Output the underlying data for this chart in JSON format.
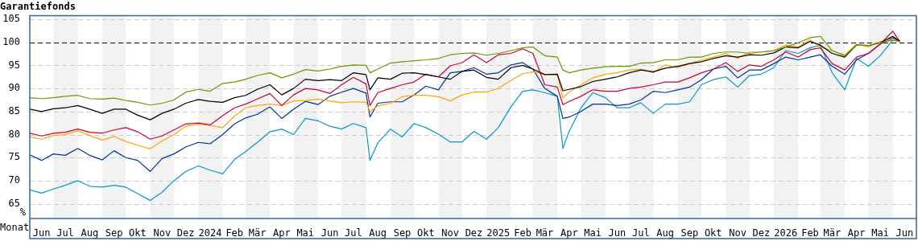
{
  "chart_data": {
    "type": "line",
    "title": "Garantiefonds",
    "xlabel": "Monat",
    "ylabel": "%",
    "x": [
      "2023-06-01",
      "2023-06-16",
      "2023-07-01",
      "2023-07-16",
      "2023-08-01",
      "2023-08-16",
      "2023-09-01",
      "2023-09-16",
      "2023-10-01",
      "2023-10-16",
      "2023-11-01",
      "2023-11-16",
      "2023-12-01",
      "2023-12-16",
      "2024-01-01",
      "2024-01-16",
      "2024-02-01",
      "2024-02-16",
      "2024-03-01",
      "2024-03-16",
      "2024-04-01",
      "2024-04-16",
      "2024-05-01",
      "2024-05-16",
      "2024-06-01",
      "2024-06-16",
      "2024-07-01",
      "2024-07-16",
      "2024-08-01",
      "2024-08-06",
      "2024-08-16",
      "2024-09-01",
      "2024-09-16",
      "2024-10-01",
      "2024-10-16",
      "2024-11-01",
      "2024-11-16",
      "2024-12-01",
      "2024-12-16",
      "2025-01-01",
      "2025-01-16",
      "2025-02-01",
      "2025-02-16",
      "2025-03-01",
      "2025-03-16",
      "2025-04-01",
      "2025-04-08",
      "2025-04-16",
      "2025-05-01",
      "2025-05-16",
      "2025-06-01",
      "2025-06-16",
      "2025-07-01",
      "2025-07-16",
      "2025-08-01",
      "2025-08-16",
      "2025-09-01",
      "2025-09-16",
      "2025-10-01",
      "2025-10-16",
      "2025-11-01",
      "2025-11-16",
      "2025-12-01",
      "2025-12-16",
      "2026-01-01",
      "2026-01-16",
      "2026-02-01",
      "2026-02-16",
      "2026-03-01",
      "2026-03-16",
      "2026-04-01",
      "2026-04-16",
      "2026-05-01",
      "2026-05-16",
      "2026-06-01",
      "2026-06-10"
    ],
    "series": [
      {
        "color": "#669900",
        "values": [
          88.0,
          87.8,
          88.0,
          88.3,
          88.5,
          87.8,
          87.7,
          87.9,
          87.4,
          87.0,
          86.4,
          86.8,
          87.5,
          89.2,
          89.8,
          89.4,
          91.1,
          91.4,
          92.0,
          92.8,
          93.4,
          92.3,
          93.1,
          94.1,
          93.8,
          94.2,
          94.8,
          95.1,
          95.0,
          93.4,
          94.2,
          95.5,
          95.8,
          96.0,
          96.2,
          96.5,
          97.3,
          97.6,
          97.7,
          97.2,
          97.6,
          98.2,
          98.8,
          99.0,
          97.1,
          96.8,
          94.0,
          93.4,
          94.0,
          94.4,
          94.7,
          94.8,
          94.8,
          95.5,
          95.6,
          96.2,
          96.2,
          96.8,
          96.8,
          97.6,
          97.9,
          97.9,
          97.6,
          97.9,
          98.2,
          99.0,
          99.9,
          101.0,
          101.3,
          98.2,
          97.1,
          99.4,
          99.3,
          99.9,
          100.5,
          100.2
        ]
      },
      {
        "color": "#000000",
        "values": [
          85.5,
          85.0,
          85.6,
          85.8,
          86.3,
          85.5,
          84.6,
          85.5,
          85.5,
          84.2,
          83.2,
          84.6,
          85.5,
          86.8,
          87.6,
          87.2,
          87.0,
          88.0,
          88.5,
          89.8,
          90.8,
          88.6,
          90.0,
          92.0,
          91.7,
          91.9,
          91.7,
          93.4,
          93.0,
          89.7,
          92.3,
          92.0,
          93.3,
          93.4,
          93.0,
          92.5,
          92.0,
          93.7,
          94.0,
          92.4,
          92.0,
          94.5,
          95.0,
          94.2,
          93.0,
          93.1,
          89.5,
          89.8,
          90.4,
          91.5,
          92.0,
          92.5,
          93.4,
          94.0,
          93.6,
          94.4,
          94.8,
          95.4,
          95.8,
          96.5,
          97.1,
          96.8,
          97.3,
          97.2,
          97.7,
          99.0,
          98.8,
          100.2,
          99.4,
          97.6,
          96.8,
          99.4,
          99.3,
          99.9,
          101.3,
          100.2
        ]
      },
      {
        "color": "#cc0033",
        "values": [
          80.3,
          79.7,
          80.3,
          80.5,
          81.2,
          80.5,
          80.3,
          81.0,
          81.5,
          80.6,
          79.0,
          79.7,
          81.0,
          82.3,
          82.5,
          82.1,
          84.1,
          85.8,
          86.6,
          87.7,
          88.9,
          86.3,
          88.6,
          90.0,
          89.7,
          88.9,
          90.8,
          92.4,
          91.0,
          86.3,
          89.1,
          90.0,
          90.8,
          91.4,
          93.1,
          92.5,
          94.9,
          95.6,
          97.3,
          95.6,
          97.3,
          97.6,
          98.6,
          97.6,
          90.8,
          90.3,
          86.5,
          87.2,
          88.3,
          89.7,
          89.4,
          89.4,
          90.0,
          90.3,
          90.8,
          91.4,
          91.4,
          92.3,
          93.4,
          94.2,
          95.6,
          93.7,
          95.1,
          94.8,
          96.2,
          97.9,
          96.8,
          98.4,
          98.8,
          95.4,
          94.0,
          96.8,
          97.6,
          99.6,
          102.4,
          100.2
        ]
      },
      {
        "color": "#ffa500",
        "values": [
          79.5,
          79.0,
          79.8,
          80.0,
          80.8,
          79.8,
          78.8,
          79.6,
          78.5,
          77.7,
          76.9,
          78.6,
          80.0,
          81.8,
          82.2,
          82.0,
          81.5,
          84.0,
          85.8,
          86.3,
          86.6,
          86.3,
          87.3,
          87.4,
          87.7,
          87.3,
          86.9,
          87.1,
          87.0,
          85.0,
          86.2,
          86.8,
          88.2,
          88.5,
          88.5,
          88.2,
          87.3,
          88.6,
          89.2,
          89.2,
          90.0,
          91.7,
          93.2,
          93.6,
          93.1,
          92.9,
          88.0,
          89.2,
          90.8,
          92.3,
          93.1,
          93.4,
          94.0,
          94.2,
          93.4,
          95.1,
          94.5,
          95.4,
          96.2,
          96.8,
          97.6,
          96.5,
          97.9,
          97.9,
          98.2,
          99.4,
          99.0,
          100.5,
          99.0,
          98.2,
          97.3,
          99.6,
          99.0,
          100.2,
          100.6,
          100.2
        ]
      },
      {
        "color": "#003399",
        "values": [
          75.6,
          74.4,
          75.8,
          75.5,
          77.0,
          75.5,
          74.5,
          76.5,
          75.0,
          74.4,
          72.0,
          74.8,
          75.8,
          77.3,
          78.3,
          78.0,
          80.0,
          82.3,
          83.6,
          84.4,
          86.0,
          83.5,
          85.5,
          87.2,
          86.5,
          88.3,
          89.2,
          90.0,
          89.0,
          83.8,
          86.8,
          87.1,
          87.1,
          88.6,
          90.5,
          89.7,
          93.4,
          93.7,
          94.5,
          93.1,
          93.4,
          95.1,
          95.6,
          94.2,
          90.0,
          88.3,
          83.5,
          83.8,
          85.0,
          86.6,
          86.6,
          86.3,
          86.6,
          87.5,
          89.4,
          89.1,
          89.7,
          90.3,
          91.9,
          94.2,
          94.8,
          92.3,
          94.0,
          94.0,
          95.4,
          96.8,
          96.2,
          96.8,
          97.3,
          94.8,
          93.1,
          96.2,
          97.6,
          99.6,
          101.0,
          100.2
        ]
      },
      {
        "color": "#0099cc",
        "values": [
          68.0,
          67.3,
          68.2,
          69.0,
          70.0,
          68.8,
          68.6,
          69.0,
          68.6,
          67.2,
          65.7,
          67.5,
          70.0,
          72.0,
          73.2,
          72.3,
          71.5,
          74.6,
          76.3,
          78.3,
          80.6,
          81.2,
          80.0,
          83.5,
          83.0,
          81.8,
          81.2,
          82.4,
          81.5,
          74.4,
          78.2,
          81.2,
          79.5,
          82.4,
          81.5,
          80.1,
          78.4,
          78.4,
          80.7,
          79.0,
          81.5,
          86.0,
          89.4,
          89.7,
          89.1,
          88.3,
          77.0,
          80.7,
          85.8,
          89.1,
          88.0,
          85.8,
          85.8,
          86.9,
          84.6,
          86.6,
          86.6,
          87.1,
          90.8,
          91.9,
          92.5,
          90.3,
          92.8,
          93.1,
          94.5,
          98.2,
          97.6,
          98.8,
          99.4,
          93.4,
          89.7,
          96.5,
          94.8,
          97.1,
          100.5,
          100.2
        ]
      }
    ],
    "xlim": [
      "2023-06-01",
      "2026-07-01"
    ],
    "xticks": [
      {
        "value": "2023-06-16",
        "label": "Jun"
      },
      {
        "value": "2023-07-16",
        "label": "Jul"
      },
      {
        "value": "2023-08-16",
        "label": "Aug"
      },
      {
        "value": "2023-09-16",
        "label": "Sep"
      },
      {
        "value": "2023-10-16",
        "label": "Okt"
      },
      {
        "value": "2023-11-16",
        "label": "Nov"
      },
      {
        "value": "2023-12-16",
        "label": "Dez"
      },
      {
        "value": "2024-01-16",
        "label": "2024"
      },
      {
        "value": "2024-02-16",
        "label": "Feb"
      },
      {
        "value": "2024-03-16",
        "label": "Mär"
      },
      {
        "value": "2024-04-16",
        "label": "Apr"
      },
      {
        "value": "2024-05-16",
        "label": "Mai"
      },
      {
        "value": "2024-06-16",
        "label": "Jun"
      },
      {
        "value": "2024-07-16",
        "label": "Jul"
      },
      {
        "value": "2024-08-16",
        "label": "Aug"
      },
      {
        "value": "2024-09-16",
        "label": "Sep"
      },
      {
        "value": "2024-10-16",
        "label": "Okt"
      },
      {
        "value": "2024-11-16",
        "label": "Nov"
      },
      {
        "value": "2024-12-16",
        "label": "Dez"
      },
      {
        "value": "2025-01-16",
        "label": "2025"
      },
      {
        "value": "2025-02-16",
        "label": "Feb"
      },
      {
        "value": "2025-03-16",
        "label": "Mär"
      },
      {
        "value": "2025-04-16",
        "label": "Apr"
      },
      {
        "value": "2025-05-16",
        "label": "Mai"
      },
      {
        "value": "2025-06-16",
        "label": "Jun"
      },
      {
        "value": "2025-07-16",
        "label": "Jul"
      },
      {
        "value": "2025-08-16",
        "label": "Aug"
      },
      {
        "value": "2025-09-16",
        "label": "Sep"
      },
      {
        "value": "2025-10-16",
        "label": "Okt"
      },
      {
        "value": "2025-11-16",
        "label": "Nov"
      },
      {
        "value": "2025-12-16",
        "label": "Dez"
      },
      {
        "value": "2026-01-16",
        "label": "2026"
      },
      {
        "value": "2026-02-16",
        "label": "Feb"
      },
      {
        "value": "2026-03-16",
        "label": "Mär"
      },
      {
        "value": "2026-04-16",
        "label": "Apr"
      },
      {
        "value": "2026-05-16",
        "label": "Mai"
      },
      {
        "value": "2026-06-16",
        "label": "Jun"
      }
    ],
    "ylim": [
      61.8,
      105.8
    ],
    "yticks": [
      65,
      70,
      75,
      80,
      85,
      90,
      95,
      100,
      105
    ],
    "grid": "y",
    "legend": false,
    "marker": "none",
    "line_style": "solid",
    "ref_lines": [
      {
        "axis": "y",
        "value": 100,
        "color": "#000000",
        "line_style": "dashed"
      }
    ],
    "bands": [
      {
        "axis": "x",
        "from": "2023-07-01",
        "to": "2023-08-01",
        "color": "#f2f2f2"
      },
      {
        "axis": "x",
        "from": "2023-09-01",
        "to": "2023-10-01",
        "color": "#f2f2f2"
      },
      {
        "axis": "x",
        "from": "2023-11-01",
        "to": "2023-12-01",
        "color": "#f2f2f2"
      },
      {
        "axis": "x",
        "from": "2024-01-01",
        "to": "2024-02-01",
        "color": "#f2f2f2"
      },
      {
        "axis": "x",
        "from": "2024-03-01",
        "to": "2024-04-01",
        "color": "#f2f2f2"
      },
      {
        "axis": "x",
        "from": "2024-05-01",
        "to": "2024-06-01",
        "color": "#f2f2f2"
      },
      {
        "axis": "x",
        "from": "2024-07-01",
        "to": "2024-08-01",
        "color": "#f2f2f2"
      },
      {
        "axis": "x",
        "from": "2024-09-01",
        "to": "2024-10-01",
        "color": "#f2f2f2"
      },
      {
        "axis": "x",
        "from": "2024-11-01",
        "to": "2024-12-01",
        "color": "#f2f2f2"
      },
      {
        "axis": "x",
        "from": "2025-01-01",
        "to": "2025-02-01",
        "color": "#f2f2f2"
      },
      {
        "axis": "x",
        "from": "2025-03-01",
        "to": "2025-04-01",
        "color": "#f2f2f2"
      },
      {
        "axis": "x",
        "from": "2025-05-01",
        "to": "2025-06-01",
        "color": "#f2f2f2"
      },
      {
        "axis": "x",
        "from": "2025-07-01",
        "to": "2025-08-01",
        "color": "#f2f2f2"
      },
      {
        "axis": "x",
        "from": "2025-09-01",
        "to": "2025-10-01",
        "color": "#f2f2f2"
      },
      {
        "axis": "x",
        "from": "2025-11-01",
        "to": "2025-12-01",
        "color": "#f2f2f2"
      },
      {
        "axis": "x",
        "from": "2026-01-01",
        "to": "2026-02-01",
        "color": "#f2f2f2"
      },
      {
        "axis": "x",
        "from": "2026-03-01",
        "to": "2026-04-01",
        "color": "#f2f2f2"
      },
      {
        "axis": "x",
        "from": "2026-05-01",
        "to": "2026-06-01",
        "color": "#f2f2f2"
      }
    ]
  }
}
